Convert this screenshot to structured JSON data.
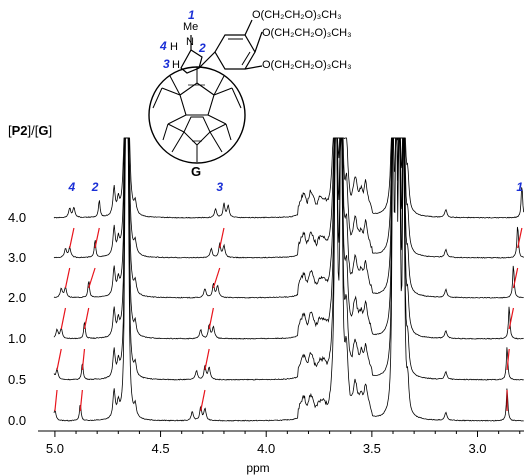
{
  "chart_data": {
    "type": "line",
    "title": "",
    "xlabel": "ppm",
    "ylabel_parts": [
      "[",
      "P2",
      "]/[",
      "G",
      "]"
    ],
    "x_reversed": true,
    "xlim": [
      5.08,
      2.78
    ],
    "x_ticks": [
      5.0,
      4.5,
      4.0,
      3.5,
      3.0
    ],
    "x_tick_labels": [
      "5.0",
      "4.5",
      "4.0",
      "3.5",
      "3.0"
    ],
    "grid": false,
    "legend": "none",
    "series": [
      {
        "ratio": "0.0",
        "peaks": {
          "1": 2.86,
          "2": 4.88,
          "3": 4.31,
          "4": 5.0
        }
      },
      {
        "ratio": "0.5",
        "peaks": {
          "1": 2.86,
          "2": 4.87,
          "3": 4.29,
          "4": 4.99
        }
      },
      {
        "ratio": "1.0",
        "peaks": {
          "1": 2.85,
          "2": 4.86,
          "3": 4.27,
          "4": 4.97
        }
      },
      {
        "ratio": "2.0",
        "peaks": {
          "1": 2.83,
          "2": 4.84,
          "3": 4.25,
          "4": 4.95
        }
      },
      {
        "ratio": "3.0",
        "peaks": {
          "1": 2.81,
          "2": 4.81,
          "3": 4.22,
          "4": 4.93
        }
      },
      {
        "ratio": "4.0",
        "peaks": {
          "1": 2.79,
          "2": 4.79,
          "3": 4.2,
          "4": 4.91
        }
      }
    ],
    "peak_annotations": [
      {
        "label": "1",
        "x": 2.8
      },
      {
        "label": "2",
        "x": 4.81
      },
      {
        "label": "3",
        "x": 4.22
      },
      {
        "label": "4",
        "x": 4.92
      }
    ],
    "shift_line_color": "#e8141c",
    "trace_color": "#000000"
  },
  "structure": {
    "label": "G",
    "me_label": "Me",
    "n_label": "N",
    "h_labels": [
      "H",
      "H"
    ],
    "position_numbers": [
      "1",
      "2",
      "3",
      "4"
    ],
    "substituents": [
      "O(CH₂CH₂O)₃CH₃",
      "O(CH₂CH₂O)₃CH₃",
      "O(CH₂CH₂O)₃CH₃"
    ],
    "number_color": "#1a2fd6"
  }
}
